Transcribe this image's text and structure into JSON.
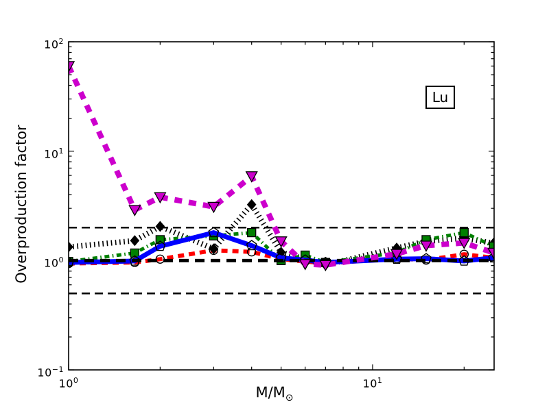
{
  "figure": {
    "background": "#ffffff",
    "frame_color": "#000000"
  },
  "chart_data": {
    "type": "line",
    "xscale": "log",
    "yscale": "log",
    "xlim": [
      1,
      25.1
    ],
    "ylim": [
      0.1,
      100
    ],
    "grid": false,
    "legend": null,
    "title": "",
    "xlabel": {
      "text": "M/M",
      "subscript": "⊙"
    },
    "ylabel": "Overproduction factor",
    "annotation": "Lu",
    "xaxis_ticklabels": [
      {
        "base": "10",
        "exp": "0"
      },
      {
        "base": "10",
        "exp": "1"
      }
    ],
    "yaxis_ticklabels": [
      {
        "base": "10",
        "exp": "2"
      },
      {
        "base": "10",
        "exp": "1"
      },
      {
        "base": "10",
        "exp": "0"
      },
      {
        "base": "10",
        "exp": "−1"
      }
    ],
    "x": [
      1,
      1.65,
      2,
      3,
      4,
      5,
      6,
      7,
      12,
      15,
      20,
      25
    ],
    "series": [
      {
        "name": "red-dashed",
        "color": "#ff0000",
        "linestyle": "dashed",
        "linewidth": 6,
        "marker": "circle-open",
        "zorder": 1,
        "values": [
          0.94,
          0.96,
          1.03,
          1.24,
          1.2,
          1.03,
          0.98,
          0.94,
          1.04,
          1.01,
          1.14,
          1.06
        ]
      },
      {
        "name": "black-dotted",
        "color": "#000000",
        "linestyle": "dotted-dense",
        "linewidth": 8,
        "marker": "diamond",
        "zorder": 2,
        "values": [
          1.33,
          1.52,
          2.05,
          1.28,
          3.25,
          1.19,
          1.03,
          0.91,
          1.3,
          1.5,
          1.6,
          1.44
        ]
      },
      {
        "name": "green-dashdot",
        "color": "#008000",
        "linestyle": "dashdot",
        "linewidth": 5,
        "marker": "square",
        "zorder": 3,
        "values": [
          0.98,
          1.17,
          1.55,
          1.68,
          1.8,
          1.0,
          1.12,
          0.96,
          1.18,
          1.55,
          1.8,
          1.35
        ]
      },
      {
        "name": "blue-solid",
        "color": "#0000ff",
        "linestyle": "solid",
        "linewidth": 7,
        "marker": "pentagon-open",
        "zorder": 4,
        "values": [
          0.96,
          0.99,
          1.35,
          1.8,
          1.37,
          1.06,
          1.01,
          0.96,
          1.03,
          1.04,
          0.99,
          1.06
        ]
      },
      {
        "name": "magenta-dashed",
        "color": "#cc00cc",
        "linestyle": "dashed-wide",
        "linewidth": 8,
        "marker": "triangle-down",
        "zorder": 6,
        "values": [
          60,
          2.9,
          3.8,
          3.1,
          5.9,
          1.5,
          0.93,
          0.91,
          1.15,
          1.37,
          1.45,
          1.18
        ]
      }
    ],
    "reference_lines": [
      {
        "y": 2.0,
        "color": "#000000",
        "linestyle": "ref-dash",
        "linewidth": 2.5,
        "zorder": 5.0
      },
      {
        "y": 1.0,
        "color": "#000000",
        "linestyle": "ref-dash-thick",
        "linewidth": 5,
        "zorder": 5.1
      },
      {
        "y": 0.5,
        "color": "#000000",
        "linestyle": "ref-dash",
        "linewidth": 2.5,
        "zorder": 5.2
      }
    ]
  }
}
